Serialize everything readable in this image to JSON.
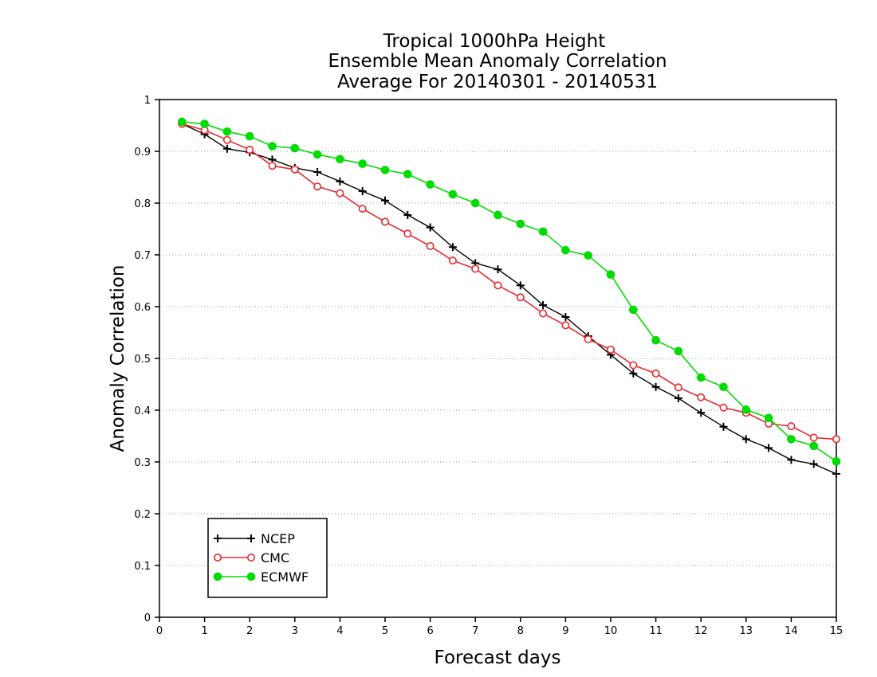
{
  "chart_data": {
    "type": "line",
    "title_lines": [
      "Tropical 1000hPa Height",
      "Ensemble Mean Anomaly Correlation",
      "Average For 20140301 - 20140531"
    ],
    "xlabel": "Forecast days",
    "ylabel": "Anomaly Correlation",
    "xlim": [
      0,
      15
    ],
    "ylim": [
      0,
      1
    ],
    "xticks": [
      0,
      1,
      2,
      3,
      4,
      5,
      6,
      7,
      8,
      9,
      10,
      11,
      12,
      13,
      14,
      15
    ],
    "yticks": [
      0,
      0.1,
      0.2,
      0.3,
      0.4,
      0.5,
      0.6,
      0.7,
      0.8,
      0.9,
      1
    ],
    "ytick_labels": [
      "0",
      "0.1",
      "0.2",
      "0.3",
      "0.4",
      "0.5",
      "0.6",
      "0.7",
      "0.8",
      "0.9",
      "1"
    ],
    "grid": "horizontal-dotted",
    "legend_position": "bottom-left",
    "x": [
      0.5,
      1,
      1.5,
      2,
      2.5,
      3,
      3.5,
      4,
      4.5,
      5,
      5.5,
      6,
      6.5,
      7,
      7.5,
      8,
      8.5,
      9,
      9.5,
      10,
      10.5,
      11,
      11.5,
      12,
      12.5,
      13,
      13.5,
      14,
      14.5,
      15
    ],
    "series": [
      {
        "name": "NCEP",
        "color": "#000000",
        "marker": "plus",
        "values": [
          0.953,
          0.933,
          0.905,
          0.898,
          0.884,
          0.868,
          0.86,
          0.842,
          0.823,
          0.805,
          0.777,
          0.753,
          0.715,
          0.684,
          0.672,
          0.641,
          0.603,
          0.58,
          0.543,
          0.507,
          0.471,
          0.445,
          0.423,
          0.395,
          0.368,
          0.344,
          0.327,
          0.304,
          0.296,
          0.277
        ]
      },
      {
        "name": "CMC",
        "color": "#e8292e",
        "marker": "open-circle",
        "values": [
          0.953,
          0.941,
          0.922,
          0.903,
          0.872,
          0.865,
          0.832,
          0.819,
          0.789,
          0.764,
          0.741,
          0.717,
          0.689,
          0.673,
          0.641,
          0.618,
          0.587,
          0.564,
          0.537,
          0.517,
          0.487,
          0.471,
          0.444,
          0.425,
          0.405,
          0.395,
          0.374,
          0.369,
          0.347,
          0.344
        ]
      },
      {
        "name": "ECMWF",
        "color": "#00dc00",
        "marker": "filled-circle",
        "values": [
          0.957,
          0.953,
          0.938,
          0.929,
          0.91,
          0.906,
          0.894,
          0.885,
          0.876,
          0.864,
          0.856,
          0.836,
          0.817,
          0.8,
          0.777,
          0.76,
          0.745,
          0.709,
          0.699,
          0.662,
          0.594,
          0.535,
          0.514,
          0.463,
          0.445,
          0.401,
          0.385,
          0.344,
          0.331,
          0.301
        ]
      }
    ]
  }
}
